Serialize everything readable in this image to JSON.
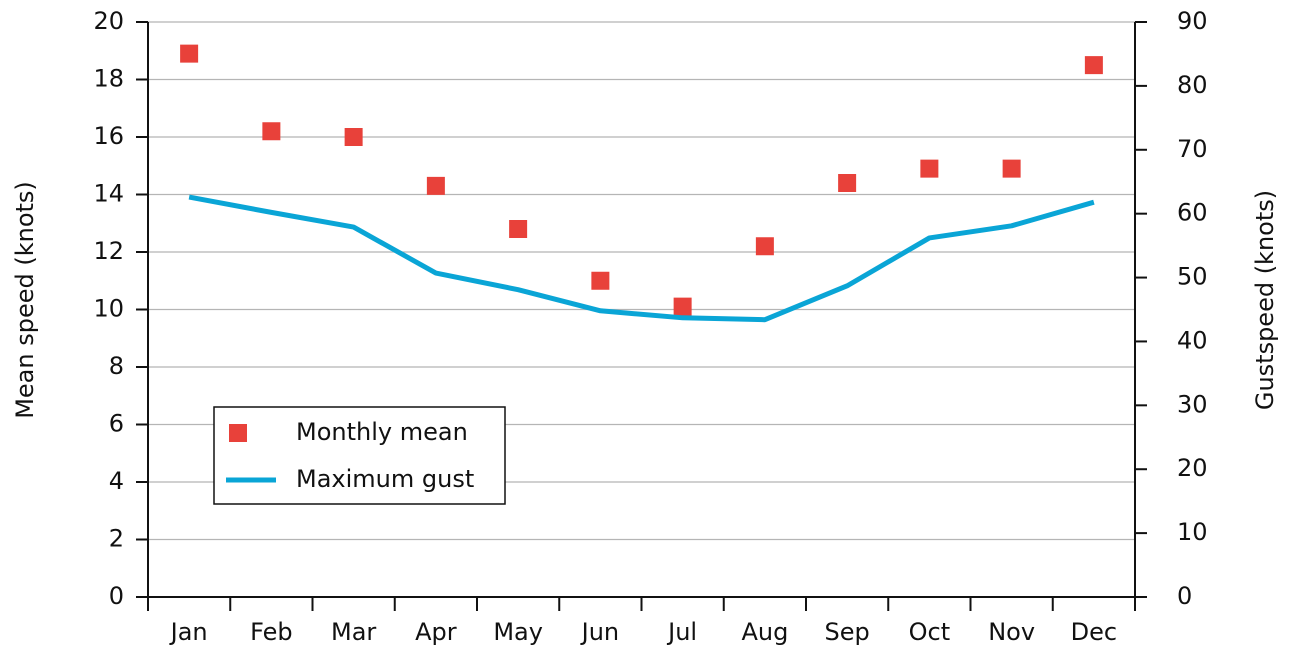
{
  "chart_data": {
    "type": "scatter-line",
    "categories": [
      "Jan",
      "Feb",
      "Mar",
      "Apr",
      "May",
      "Jun",
      "Jul",
      "Aug",
      "Sep",
      "Oct",
      "Nov",
      "Dec"
    ],
    "ylabel": "Mean speed (knots)",
    "y2label": "Gustspeed (knots)",
    "ylim": [
      0,
      20
    ],
    "yticks": [
      0,
      2,
      4,
      6,
      8,
      10,
      12,
      14,
      16,
      18,
      20
    ],
    "y2lim": [
      0,
      90
    ],
    "y2ticks": [
      0,
      10,
      20,
      30,
      40,
      50,
      60,
      70,
      80,
      90
    ],
    "grid": true,
    "legend": "lower left",
    "series": [
      {
        "name": "Monthly mean",
        "type": "scatter",
        "color": "#e8413a",
        "values": [
          18.9,
          16.2,
          16.0,
          14.3,
          12.8,
          11.0,
          10.1,
          12.2,
          14.4,
          14.9,
          14.9,
          18.5
        ]
      },
      {
        "name": "Maximum gust",
        "type": "line",
        "axis": "y2",
        "color": "#0aa5d6",
        "values": [
          62.6,
          60.2,
          57.9,
          50.7,
          48.1,
          44.8,
          43.7,
          43.4,
          48.7,
          56.2,
          58.1,
          61.8
        ]
      }
    ]
  }
}
